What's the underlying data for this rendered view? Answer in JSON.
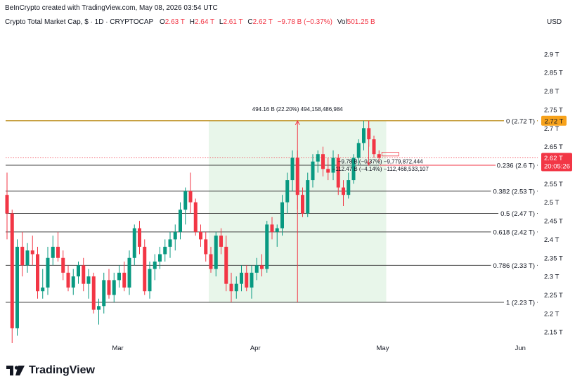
{
  "header": {
    "credit": "BeInCrypto created with TradingView.com, May 08, 2026 03:54 UTC",
    "symbol": "Crypto Total Market Cap, $ · 1D · CRYPTOCAP",
    "o_label": "O",
    "o_value": "2.63 T",
    "h_label": "H",
    "h_value": "2.64 T",
    "l_label": "L",
    "l_value": "2.61 T",
    "c_label": "C",
    "c_value": "2.62 T",
    "change": "−9.78 B (−0.37%)",
    "vol_label": "Vol",
    "vol_value": "501.25 B"
  },
  "currency": "USD",
  "brand": "TradingView",
  "colors": {
    "up": "#089981",
    "down": "#f23645",
    "fib_zero": "#b8860b",
    "range_fill": "#e8f6ea",
    "price_badge": "#f23645",
    "fib_badge": "#f7a21b"
  },
  "chart_data": {
    "type": "candlestick",
    "title": "Crypto Total Market Cap, $ · 1D · CRYPTOCAP",
    "y_unit": "T",
    "ylim": [
      2.12,
      2.97
    ],
    "y_ticks": [
      "2.15 T",
      "2.2 T",
      "2.25 T",
      "2.3 T",
      "2.35 T",
      "2.4 T",
      "2.45 T",
      "2.5 T",
      "2.55 T",
      "2.6 T",
      "2.65 T",
      "2.7 T",
      "2.75 T",
      "2.8 T",
      "2.85 T",
      "2.9 T"
    ],
    "x_ticks": [
      "Mar",
      "Apr",
      "May",
      "Jun"
    ],
    "candles": [
      [
        2.52,
        2.58,
        2.4,
        2.47
      ],
      [
        2.47,
        2.48,
        2.12,
        2.16
      ],
      [
        2.16,
        2.4,
        2.14,
        2.38
      ],
      [
        2.38,
        2.42,
        2.3,
        2.33
      ],
      [
        2.33,
        2.39,
        2.31,
        2.37
      ],
      [
        2.37,
        2.41,
        2.33,
        2.36
      ],
      [
        2.36,
        2.38,
        2.24,
        2.26
      ],
      [
        2.26,
        2.32,
        2.24,
        2.27
      ],
      [
        2.27,
        2.38,
        2.25,
        2.35
      ],
      [
        2.35,
        2.41,
        2.33,
        2.38
      ],
      [
        2.38,
        2.42,
        2.34,
        2.35
      ],
      [
        2.35,
        2.37,
        2.29,
        2.31
      ],
      [
        2.31,
        2.33,
        2.26,
        2.27
      ],
      [
        2.27,
        2.32,
        2.25,
        2.3
      ],
      [
        2.3,
        2.34,
        2.28,
        2.33
      ],
      [
        2.33,
        2.35,
        2.26,
        2.28
      ],
      [
        2.28,
        2.32,
        2.24,
        2.3
      ],
      [
        2.3,
        2.31,
        2.2,
        2.21
      ],
      [
        2.21,
        2.24,
        2.17,
        2.22
      ],
      [
        2.22,
        2.31,
        2.2,
        2.29
      ],
      [
        2.29,
        2.32,
        2.24,
        2.25
      ],
      [
        2.25,
        2.31,
        2.23,
        2.29
      ],
      [
        2.29,
        2.33,
        2.27,
        2.31
      ],
      [
        2.31,
        2.34,
        2.26,
        2.27
      ],
      [
        2.27,
        2.37,
        2.25,
        2.35
      ],
      [
        2.35,
        2.44,
        2.33,
        2.43
      ],
      [
        2.43,
        2.45,
        2.36,
        2.38
      ],
      [
        2.38,
        2.4,
        2.25,
        2.26
      ],
      [
        2.26,
        2.34,
        2.24,
        2.32
      ],
      [
        2.32,
        2.36,
        2.29,
        2.34
      ],
      [
        2.34,
        2.38,
        2.32,
        2.36
      ],
      [
        2.36,
        2.4,
        2.34,
        2.38
      ],
      [
        2.38,
        2.42,
        2.35,
        2.4
      ],
      [
        2.4,
        2.44,
        2.37,
        2.42
      ],
      [
        2.42,
        2.5,
        2.4,
        2.48
      ],
      [
        2.48,
        2.54,
        2.44,
        2.53
      ],
      [
        2.53,
        2.58,
        2.47,
        2.5
      ],
      [
        2.5,
        2.51,
        2.41,
        2.42
      ],
      [
        2.42,
        2.44,
        2.38,
        2.4
      ],
      [
        2.4,
        2.42,
        2.34,
        2.36
      ],
      [
        2.36,
        2.38,
        2.31,
        2.32
      ],
      [
        2.32,
        2.42,
        2.3,
        2.41
      ],
      [
        2.41,
        2.43,
        2.36,
        2.38
      ],
      [
        2.38,
        2.41,
        2.26,
        2.28
      ],
      [
        2.28,
        2.31,
        2.23,
        2.26
      ],
      [
        2.26,
        2.3,
        2.24,
        2.28
      ],
      [
        2.28,
        2.33,
        2.26,
        2.31
      ],
      [
        2.31,
        2.33,
        2.26,
        2.27
      ],
      [
        2.27,
        2.33,
        2.24,
        2.31
      ],
      [
        2.31,
        2.35,
        2.29,
        2.33
      ],
      [
        2.33,
        2.36,
        2.3,
        2.32
      ],
      [
        2.32,
        2.45,
        2.31,
        2.44
      ],
      [
        2.44,
        2.46,
        2.4,
        2.42
      ],
      [
        2.42,
        2.44,
        2.38,
        2.43
      ],
      [
        2.43,
        2.52,
        2.41,
        2.5
      ],
      [
        2.5,
        2.58,
        2.47,
        2.56
      ],
      [
        2.56,
        2.64,
        2.53,
        2.62
      ],
      [
        2.62,
        2.64,
        2.48,
        2.52
      ],
      [
        2.52,
        2.54,
        2.46,
        2.47
      ],
      [
        2.47,
        2.58,
        2.46,
        2.56
      ],
      [
        2.56,
        2.63,
        2.54,
        2.61
      ],
      [
        2.61,
        2.64,
        2.58,
        2.63
      ],
      [
        2.63,
        2.65,
        2.57,
        2.59
      ],
      [
        2.59,
        2.62,
        2.56,
        2.58
      ],
      [
        2.58,
        2.64,
        2.56,
        2.62
      ],
      [
        2.62,
        2.63,
        2.52,
        2.54
      ],
      [
        2.54,
        2.56,
        2.49,
        2.52
      ],
      [
        2.52,
        2.58,
        2.51,
        2.56
      ],
      [
        2.56,
        2.63,
        2.55,
        2.62
      ],
      [
        2.62,
        2.67,
        2.6,
        2.66
      ],
      [
        2.66,
        2.72,
        2.64,
        2.7
      ],
      [
        2.7,
        2.72,
        2.65,
        2.67
      ],
      [
        2.67,
        2.68,
        2.62,
        2.63
      ],
      [
        2.63,
        2.64,
        2.61,
        2.62
      ]
    ],
    "fib_levels": [
      {
        "ratio": "0",
        "label": "0 (2.72 T)",
        "value": 2.72
      },
      {
        "ratio": "0.236",
        "label": "0.236 (2.6 T)",
        "value": 2.6
      },
      {
        "ratio": "0.382",
        "label": "0.382 (2.53 T)",
        "value": 2.53
      },
      {
        "ratio": "0.5",
        "label": "0.5 (2.47 T)",
        "value": 2.47
      },
      {
        "ratio": "0.618",
        "label": "0.618 (2.42 T)",
        "value": 2.42
      },
      {
        "ratio": "0.786",
        "label": "0.786 (2.33 T)",
        "value": 2.33
      },
      {
        "ratio": "1",
        "label": "1 (2.23 T)",
        "value": 2.23
      }
    ],
    "range_box": {
      "from_index": 40,
      "to_index": 74,
      "low": 2.23,
      "high": 2.72
    },
    "measure_up": "494.16 B (22.20%) 494,158,486,984",
    "measure_down_1": "−9.78 B (−0.37%) −9,779,872,444",
    "measure_down_2": "−112.47 B (−4.14%) −112,468,533,107",
    "last_price": "2.62 T",
    "countdown": "20:05:26",
    "fib_top_value": "2.72 T"
  }
}
